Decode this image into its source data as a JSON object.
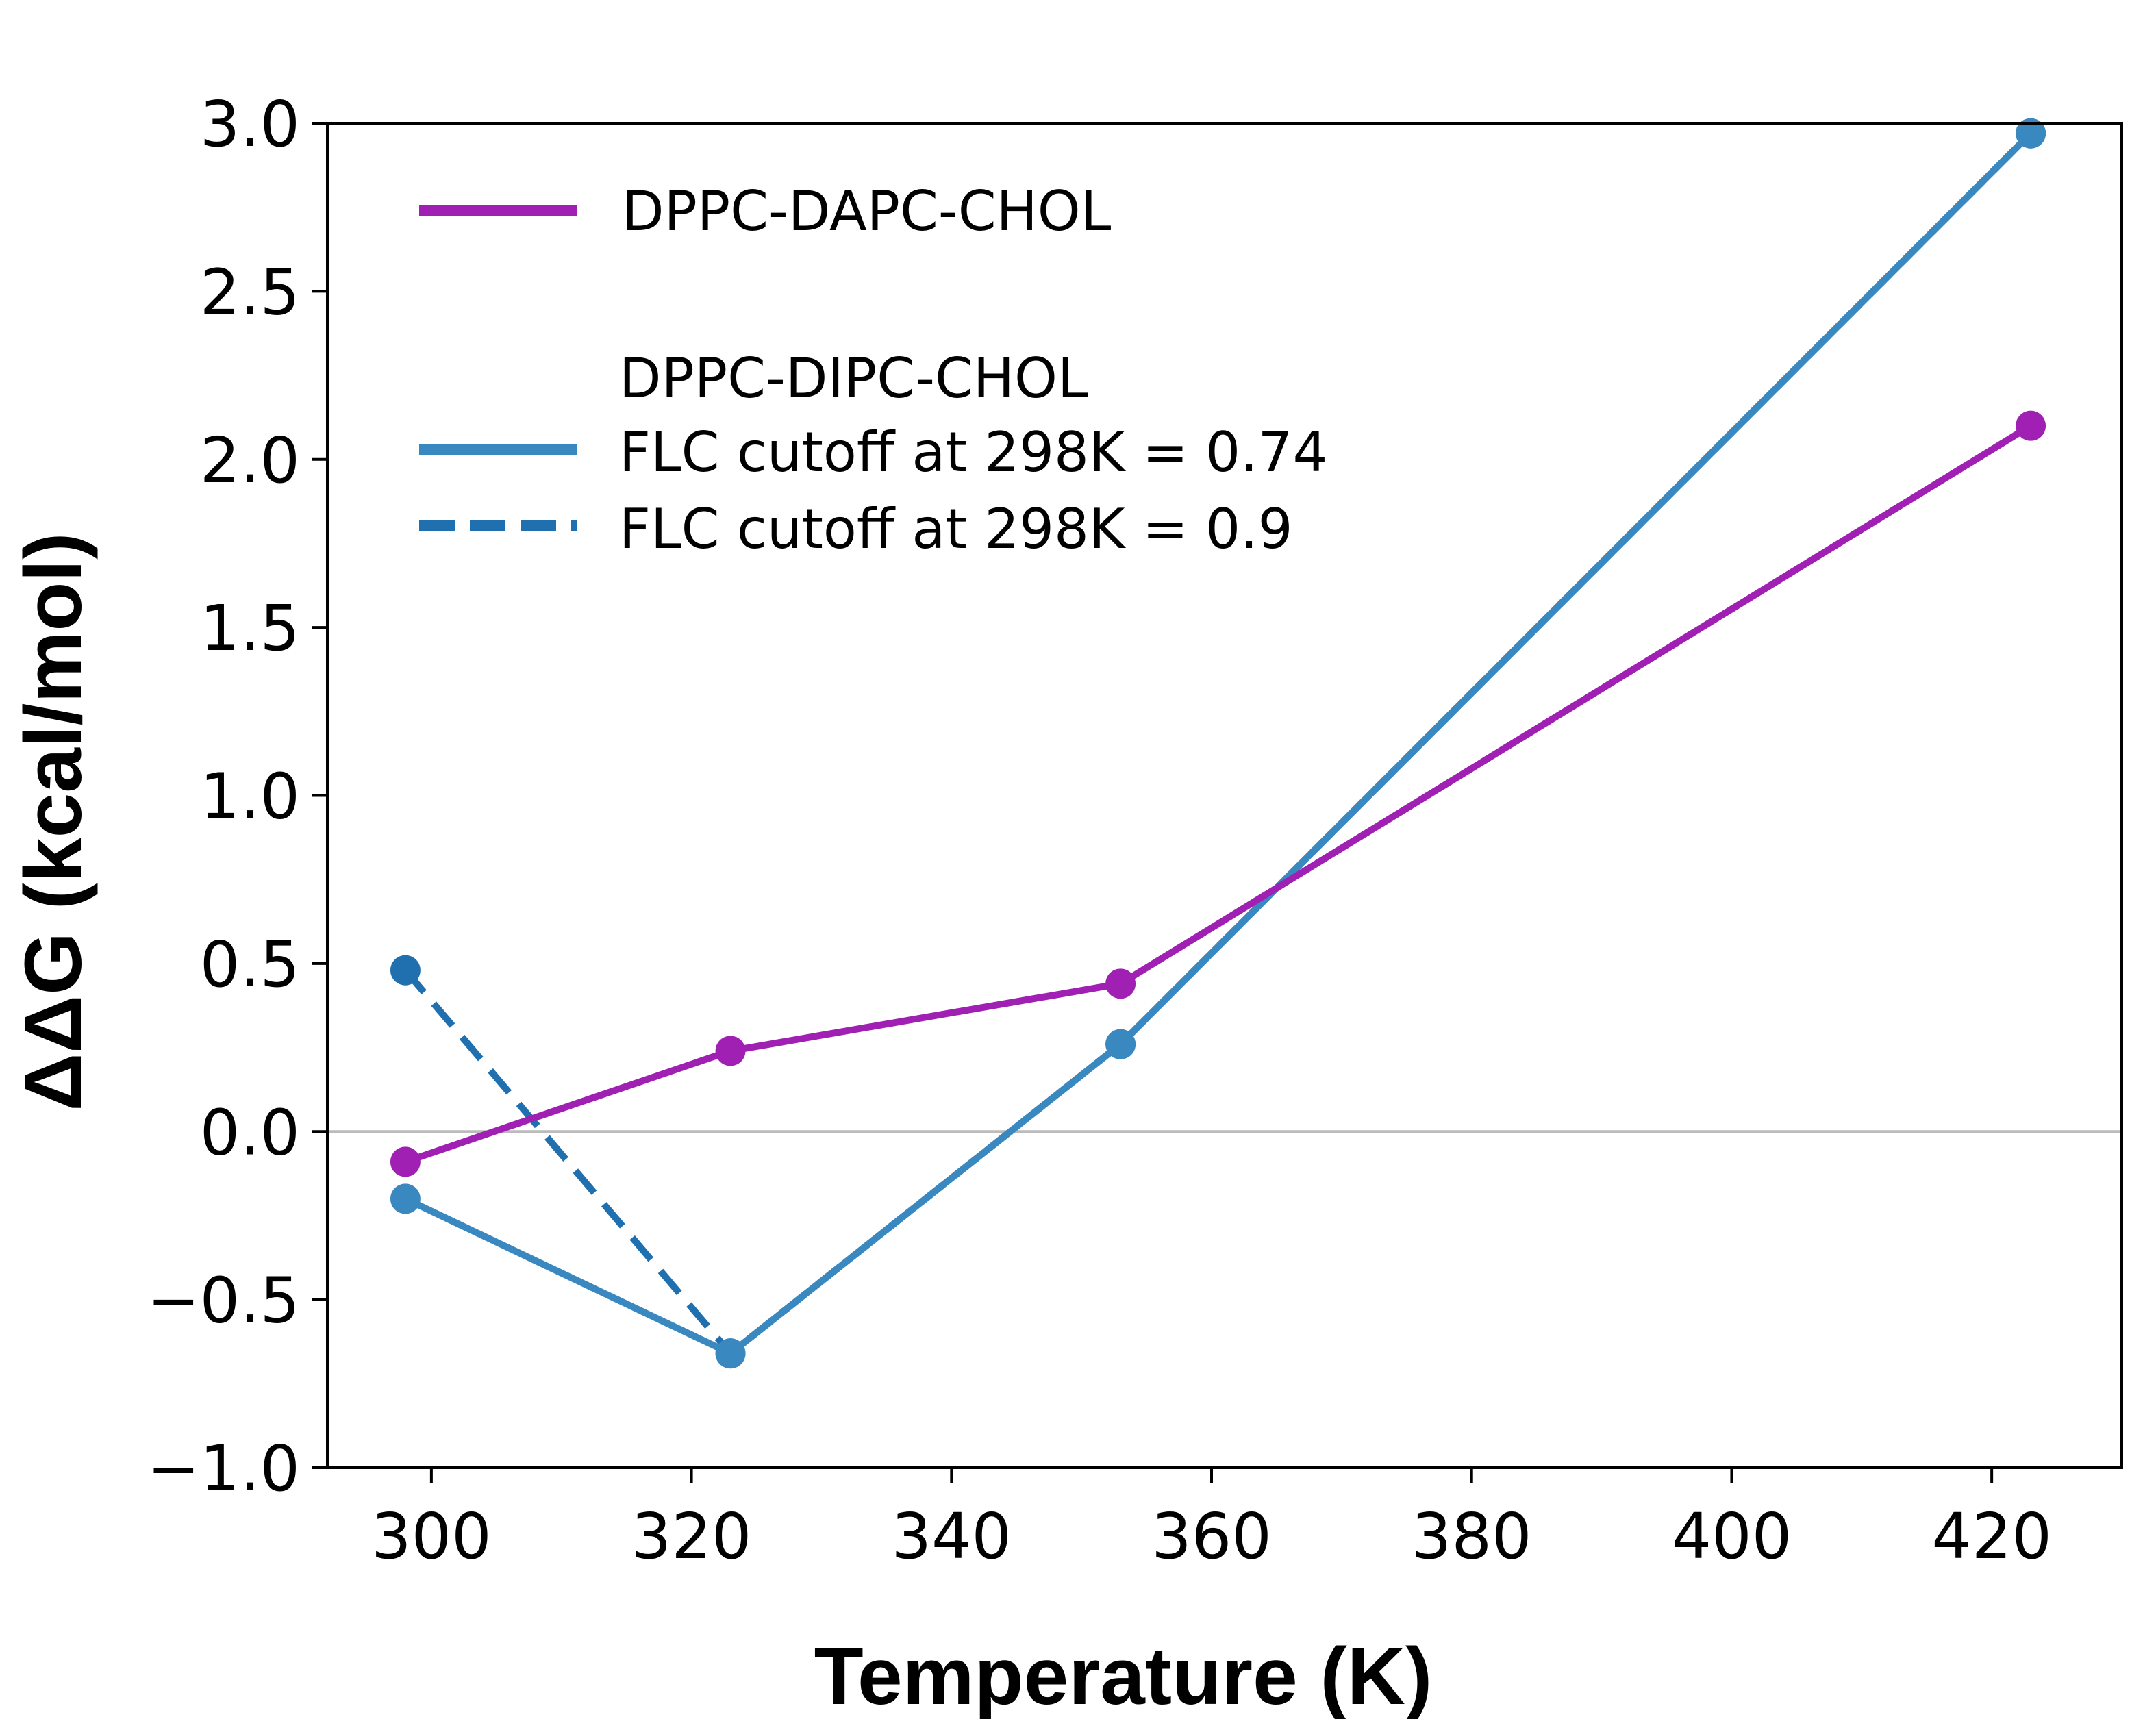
{
  "chart_data": {
    "type": "line",
    "title": "",
    "xlabel": "Temperature (K)",
    "ylabel": "ΔΔG (kcal/mol)",
    "xlim": [
      292,
      430
    ],
    "ylim": [
      -1.0,
      3.0
    ],
    "x_ticks": [
      300,
      320,
      340,
      360,
      380,
      400,
      420
    ],
    "y_ticks": [
      -1.0,
      -0.5,
      0.0,
      0.5,
      1.0,
      1.5,
      2.0,
      2.5,
      3.0
    ],
    "x_tick_labels": [
      "300",
      "320",
      "340",
      "360",
      "380",
      "400",
      "420"
    ],
    "y_tick_labels": [
      "−1.0",
      "−0.5",
      "0.0",
      "0.5",
      "1.0",
      "1.5",
      "2.0",
      "2.5",
      "3.0"
    ],
    "grid": false,
    "reference_line": {
      "y": 0.0,
      "color": "#bbbbbb"
    },
    "legend": {
      "placement": "top-left",
      "group_title": "DPPC-DIPC-CHOL"
    },
    "series": [
      {
        "name": "DPPC-DAPC-CHOL",
        "color": "#a020b4",
        "style": "solid",
        "x": [
          298,
          323,
          353,
          423
        ],
        "y": [
          -0.09,
          0.24,
          0.44,
          2.1
        ]
      },
      {
        "name": "FLC cutoff at 298K = 0.74",
        "color": "#3a88c0",
        "style": "solid",
        "x": [
          298,
          323,
          353,
          423
        ],
        "y": [
          -0.2,
          -0.66,
          0.26,
          2.97
        ]
      },
      {
        "name": "FLC cutoff at 298K = 0.9",
        "color": "#2070b0",
        "style": "dashed",
        "x": [
          298,
          323,
          353,
          423
        ],
        "y": [
          0.48,
          -0.66,
          0.26,
          2.97
        ]
      }
    ]
  }
}
